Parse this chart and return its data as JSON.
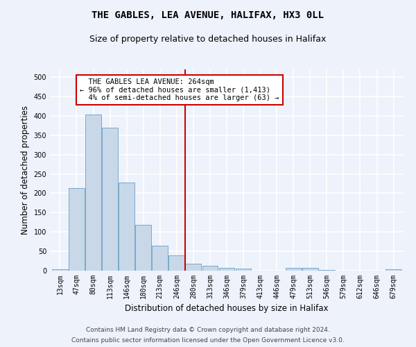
{
  "title": "THE GABLES, LEA AVENUE, HALIFAX, HX3 0LL",
  "subtitle": "Size of property relative to detached houses in Halifax",
  "xlabel": "Distribution of detached houses by size in Halifax",
  "ylabel": "Number of detached properties",
  "bar_color": "#c8d8e8",
  "bar_edge_color": "#7aa8cc",
  "categories": [
    "13sqm",
    "47sqm",
    "80sqm",
    "113sqm",
    "146sqm",
    "180sqm",
    "213sqm",
    "246sqm",
    "280sqm",
    "313sqm",
    "346sqm",
    "379sqm",
    "413sqm",
    "446sqm",
    "479sqm",
    "513sqm",
    "546sqm",
    "579sqm",
    "612sqm",
    "646sqm",
    "679sqm"
  ],
  "values": [
    4,
    214,
    403,
    370,
    228,
    118,
    65,
    40,
    18,
    13,
    7,
    5,
    0,
    0,
    7,
    7,
    2,
    0,
    0,
    0,
    3
  ],
  "ylim": [
    0,
    520
  ],
  "yticks": [
    0,
    50,
    100,
    150,
    200,
    250,
    300,
    350,
    400,
    450,
    500
  ],
  "vline_x": 7.5,
  "vline_color": "#cc0000",
  "annotation_text": "  THE GABLES LEA AVENUE: 264sqm  \n← 96% of detached houses are smaller (1,413)\n  4% of semi-detached houses are larger (63) →",
  "annotation_box_color": "#ffffff",
  "annotation_box_edge": "#cc0000",
  "footer_line1": "Contains HM Land Registry data © Crown copyright and database right 2024.",
  "footer_line2": "Contains public sector information licensed under the Open Government Licence v3.0.",
  "background_color": "#eef2fa",
  "grid_color": "#ffffff",
  "title_fontsize": 10,
  "subtitle_fontsize": 9,
  "axis_label_fontsize": 8.5,
  "tick_fontsize": 7,
  "annotation_fontsize": 7.5,
  "footer_fontsize": 6.5
}
